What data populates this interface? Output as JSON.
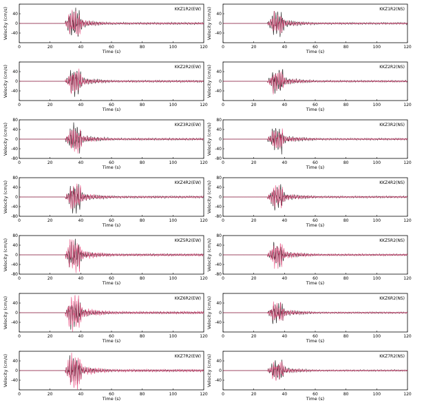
{
  "colors": {
    "trace_a": "#1a1a1a",
    "trace_b": "#e8336d",
    "axis": "#000000"
  },
  "chart_data": [
    {
      "type": "line",
      "title": "KKZ1R2(EW)",
      "xlabel": "Time (s)",
      "ylabel": "Velocity (cm/s)",
      "xlim": [
        0,
        120
      ],
      "ylim": [
        -80,
        80
      ],
      "xticks": [
        0,
        20,
        40,
        60,
        80,
        100,
        120
      ],
      "yticks": [
        -80,
        -40,
        0,
        40,
        80
      ],
      "yticks_visible": [
        -40,
        0,
        40
      ],
      "series": [
        {
          "name": "",
          "values_desc": "",
          "peak": 62,
          "color": "#1a1a1a"
        },
        {
          "name": "",
          "peak": 55,
          "color": "#e8336d"
        }
      ],
      "shape": {
        "onset": 30,
        "main": [
          33,
          36,
          39
        ],
        "decay": 14,
        "amp": 62
      }
    },
    {
      "type": "line",
      "title": "KKZ1R2(NS)",
      "xlabel": "Time (s)",
      "ylabel": "Velocity (cm/s)",
      "xlim": [
        0,
        120
      ],
      "ylim": [
        -80,
        80
      ],
      "xticks": [
        0,
        20,
        40,
        60,
        80,
        100,
        120
      ],
      "yticks": [
        -80,
        -40,
        0,
        40,
        80
      ],
      "yticks_visible": [
        -40,
        0,
        40
      ],
      "series": [
        {
          "name": "",
          "peak": 58,
          "color": "#1a1a1a"
        },
        {
          "name": "",
          "peak": 45,
          "color": "#e8336d"
        }
      ],
      "shape": {
        "onset": 29,
        "main": [
          33,
          38
        ],
        "decay": 16,
        "amp": 58
      }
    },
    {
      "type": "line",
      "title": "KKZ2R2(EW)",
      "xlabel": "Time (s)",
      "ylabel": "Velocity (cm/s)",
      "xlim": [
        0,
        120
      ],
      "ylim": [
        -80,
        80
      ],
      "xticks": [
        0,
        20,
        40,
        60,
        80,
        100,
        120
      ],
      "yticks": [
        -80,
        -40,
        0,
        40,
        80
      ],
      "yticks_visible": [
        -40,
        0,
        40
      ],
      "series": [
        {
          "name": "",
          "peak": 60,
          "color": "#1a1a1a"
        },
        {
          "name": "",
          "peak": 54,
          "color": "#e8336d"
        }
      ],
      "shape": {
        "onset": 30,
        "main": [
          34,
          36,
          39
        ],
        "decay": 15,
        "amp": 60
      }
    },
    {
      "type": "line",
      "title": "KKZ2R2(NS)",
      "xlabel": "Time (s)",
      "ylabel": "Velocity (cm/s)",
      "xlim": [
        0,
        120
      ],
      "ylim": [
        -80,
        80
      ],
      "xticks": [
        0,
        20,
        40,
        60,
        80,
        100,
        120
      ],
      "yticks": [
        -80,
        -40,
        0,
        40,
        80
      ],
      "yticks_visible": [
        -40,
        0,
        40
      ],
      "series": [
        {
          "name": "",
          "peak": 56,
          "color": "#1a1a1a"
        },
        {
          "name": "",
          "peak": 48,
          "color": "#e8336d"
        }
      ],
      "shape": {
        "onset": 29,
        "main": [
          33,
          38
        ],
        "decay": 16,
        "amp": 56
      }
    },
    {
      "type": "line",
      "title": "KKZ3R2(EW)",
      "xlabel": "Time (s)",
      "ylabel": "Velocity (cm/s)",
      "xlim": [
        0,
        120
      ],
      "ylim": [
        -80,
        80
      ],
      "xticks": [
        0,
        20,
        40,
        60,
        80,
        100,
        120
      ],
      "yticks": [
        -80,
        -40,
        0,
        40,
        80
      ],
      "yticks_visible": [
        -80,
        -40,
        0,
        40,
        80
      ],
      "series": [
        {
          "name": "",
          "peak": 60,
          "color": "#1a1a1a"
        },
        {
          "name": "",
          "peak": 55,
          "color": "#e8336d"
        }
      ],
      "shape": {
        "onset": 30,
        "main": [
          34,
          36,
          39
        ],
        "decay": 16,
        "amp": 60
      }
    },
    {
      "type": "line",
      "title": "KKZ3R2(NS)",
      "xlabel": "Time (s)",
      "ylabel": "Velocity (cm/s)",
      "xlim": [
        0,
        120
      ],
      "ylim": [
        -80,
        80
      ],
      "xticks": [
        0,
        20,
        40,
        60,
        80,
        100,
        120
      ],
      "yticks": [
        -80,
        -40,
        0,
        40,
        80
      ],
      "yticks_visible": [
        -80,
        -40,
        0,
        40,
        80
      ],
      "series": [
        {
          "name": "",
          "peak": 55,
          "color": "#1a1a1a"
        },
        {
          "name": "",
          "peak": 46,
          "color": "#e8336d"
        }
      ],
      "shape": {
        "onset": 29,
        "main": [
          33,
          38
        ],
        "decay": 17,
        "amp": 55
      }
    },
    {
      "type": "line",
      "title": "KKZ4R2(EW)",
      "xlabel": "Time (s)",
      "ylabel": "Velocity (cm/s)",
      "xlim": [
        0,
        120
      ],
      "ylim": [
        -80,
        80
      ],
      "xticks": [
        0,
        20,
        40,
        60,
        80,
        100,
        120
      ],
      "yticks": [
        -80,
        -40,
        0,
        40,
        80
      ],
      "yticks_visible": [
        -80,
        -40,
        0,
        40,
        80
      ],
      "series": [
        {
          "name": "",
          "peak": 62,
          "color": "#1a1a1a"
        },
        {
          "name": "",
          "peak": 56,
          "color": "#e8336d"
        }
      ],
      "shape": {
        "onset": 30,
        "main": [
          34,
          36,
          39
        ],
        "decay": 16,
        "amp": 62
      }
    },
    {
      "type": "line",
      "title": "KKZ4R2(NS)",
      "xlabel": "Time (s)",
      "ylabel": "Velocity (cm/s)",
      "xlim": [
        0,
        120
      ],
      "ylim": [
        -80,
        80
      ],
      "xticks": [
        0,
        20,
        40,
        60,
        80,
        100,
        120
      ],
      "yticks": [
        -80,
        -40,
        0,
        40,
        80
      ],
      "yticks_visible": [
        -80,
        -40,
        0,
        40,
        80
      ],
      "series": [
        {
          "name": "",
          "peak": 56,
          "color": "#1a1a1a"
        },
        {
          "name": "",
          "peak": 50,
          "color": "#e8336d"
        }
      ],
      "shape": {
        "onset": 29,
        "main": [
          33,
          38
        ],
        "decay": 17,
        "amp": 56
      }
    },
    {
      "type": "line",
      "title": "KKZ5R2(EW)",
      "xlabel": "Time (s)",
      "ylabel": "Velocity (cm/s)",
      "xlim": [
        0,
        120
      ],
      "ylim": [
        -80,
        80
      ],
      "xticks": [
        0,
        20,
        40,
        60,
        80,
        100,
        120
      ],
      "yticks": [
        -80,
        -40,
        0,
        40,
        80
      ],
      "yticks_visible": [
        -80,
        -40,
        0,
        40,
        80
      ],
      "series": [
        {
          "name": "",
          "peak": 58,
          "color": "#1a1a1a"
        },
        {
          "name": "",
          "peak": 75,
          "color": "#e8336d"
        }
      ],
      "shape": {
        "onset": 30,
        "main": [
          33,
          36,
          39
        ],
        "decay": 16,
        "amp": 60
      }
    },
    {
      "type": "line",
      "title": "KKZ5R2(NS)",
      "xlabel": "Time (s)",
      "ylabel": "Velocity (cm/s)",
      "xlim": [
        0,
        120
      ],
      "ylim": [
        -80,
        80
      ],
      "xticks": [
        0,
        20,
        40,
        60,
        80,
        100,
        120
      ],
      "yticks": [
        -80,
        -40,
        0,
        40,
        80
      ],
      "yticks_visible": [
        -80,
        -40,
        0,
        40,
        80
      ],
      "series": [
        {
          "name": "",
          "peak": 50,
          "color": "#1a1a1a"
        },
        {
          "name": "",
          "peak": 60,
          "color": "#e8336d"
        }
      ],
      "shape": {
        "onset": 29,
        "main": [
          33,
          38
        ],
        "decay": 17,
        "amp": 55
      }
    },
    {
      "type": "line",
      "title": "KKZ6R2(EW)",
      "xlabel": "Time (s)",
      "ylabel": "Velocity (cm/s)",
      "xlim": [
        0,
        120
      ],
      "ylim": [
        -80,
        80
      ],
      "xticks": [
        0,
        20,
        40,
        60,
        80,
        100,
        120
      ],
      "yticks": [
        -80,
        -40,
        0,
        40,
        80
      ],
      "yticks_visible": [
        -40,
        0,
        40
      ],
      "series": [
        {
          "name": "",
          "peak": 60,
          "color": "#1a1a1a"
        },
        {
          "name": "",
          "peak": 80,
          "color": "#e8336d"
        }
      ],
      "shape": {
        "onset": 30,
        "main": [
          33,
          36,
          39
        ],
        "decay": 16,
        "amp": 62
      }
    },
    {
      "type": "line",
      "title": "KKZ6R2(NS)",
      "xlabel": "Time (s)",
      "ylabel": "Velocity (cm/s)",
      "xlim": [
        0,
        120
      ],
      "ylim": [
        -80,
        80
      ],
      "xticks": [
        0,
        20,
        40,
        60,
        80,
        100,
        120
      ],
      "yticks": [
        -80,
        -40,
        0,
        40,
        80
      ],
      "yticks_visible": [
        -40,
        0,
        40
      ],
      "series": [
        {
          "name": "",
          "peak": 48,
          "color": "#1a1a1a"
        },
        {
          "name": "",
          "peak": 45,
          "color": "#e8336d"
        }
      ],
      "shape": {
        "onset": 29,
        "main": [
          33,
          38
        ],
        "decay": 17,
        "amp": 50
      }
    },
    {
      "type": "line",
      "title": "KKZ7R2(EW)",
      "xlabel": "Time (s)",
      "ylabel": "Velocity (cm/s)",
      "xlim": [
        0,
        120
      ],
      "ylim": [
        -80,
        80
      ],
      "xticks": [
        0,
        20,
        40,
        60,
        80,
        100,
        120
      ],
      "yticks": [
        -80,
        -40,
        0,
        40,
        80
      ],
      "yticks_visible": [
        -40,
        0,
        40
      ],
      "series": [
        {
          "name": "",
          "peak": 60,
          "color": "#1a1a1a"
        },
        {
          "name": "",
          "peak": 80,
          "color": "#e8336d"
        }
      ],
      "shape": {
        "onset": 30,
        "main": [
          33,
          36,
          39
        ],
        "decay": 16,
        "amp": 62
      }
    },
    {
      "type": "line",
      "title": "KKZ7R2(NS)",
      "xlabel": "Time (s)",
      "ylabel": "Velocity (cm/s)",
      "xlim": [
        0,
        120
      ],
      "ylim": [
        -80,
        80
      ],
      "xticks": [
        0,
        20,
        40,
        60,
        80,
        100,
        120
      ],
      "yticks": [
        -80,
        -40,
        0,
        40,
        80
      ],
      "yticks_visible": [
        -40,
        0,
        40
      ],
      "series": [
        {
          "name": "",
          "peak": 46,
          "color": "#1a1a1a"
        },
        {
          "name": "",
          "peak": 42,
          "color": "#e8336d"
        }
      ],
      "shape": {
        "onset": 29,
        "main": [
          33,
          38
        ],
        "decay": 17,
        "amp": 48
      }
    }
  ]
}
